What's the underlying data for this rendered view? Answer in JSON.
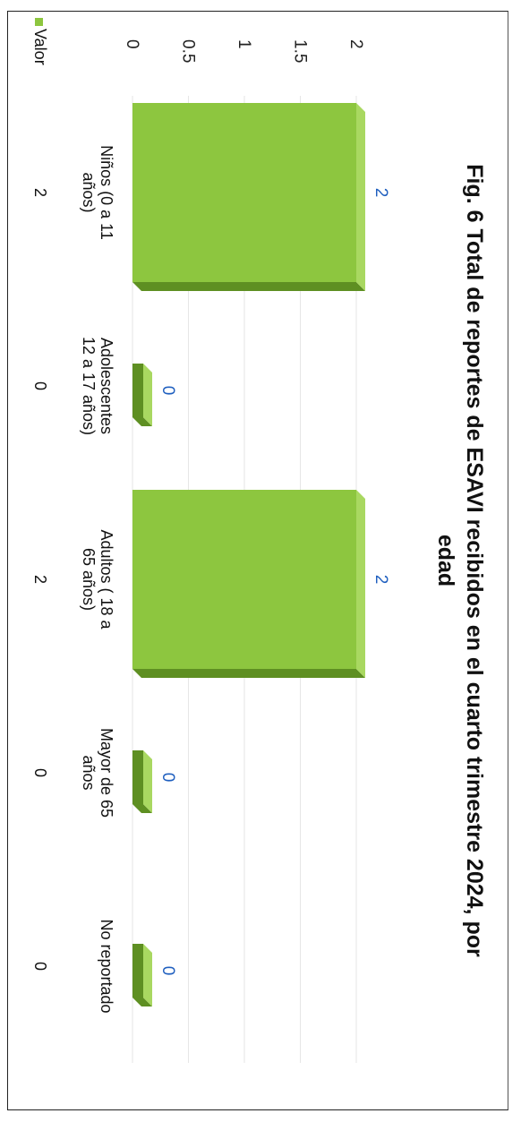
{
  "chart_data": {
    "type": "bar",
    "title_line1": "Fig. 6 Total de reportes de ESAVI recibidos en el cuarto trimestre 2024, por",
    "title_line2": "edad",
    "categories": [
      [
        "Niños (0 a 11",
        "años)"
      ],
      [
        "Adolescentes",
        "12 a 17 años)"
      ],
      [
        "Adultos ( 18 a",
        "65 años)"
      ],
      [
        "Mayor de 65",
        "años"
      ],
      [
        "No reportado"
      ]
    ],
    "series": [
      {
        "name": "Valor",
        "values": [
          2,
          0,
          2,
          0,
          0
        ]
      }
    ],
    "ylim": [
      0,
      2
    ],
    "yticks": [
      "0",
      "0.5",
      "1",
      "1.5",
      "2"
    ],
    "data_labels": [
      "2",
      "0",
      "2",
      "0",
      "0"
    ],
    "table_values": [
      "2",
      "0",
      "2",
      "0",
      "0"
    ],
    "legend": "bottom-left",
    "colors": {
      "bar": "#8dc63f",
      "bar_dark": "#5e8f22",
      "bar_top": "#a9d861",
      "label": "#1f5fbf"
    }
  }
}
